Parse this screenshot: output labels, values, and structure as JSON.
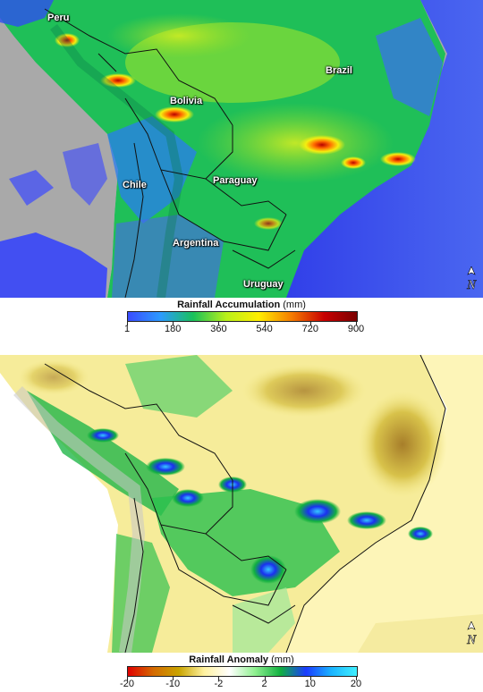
{
  "top_map": {
    "labels": {
      "peru": "Peru",
      "brazil": "Brazil",
      "bolivia": "Bolivia",
      "chile": "Chile",
      "paraguay": "Paraguay",
      "argentina": "Argentina",
      "uruguay": "Uruguay"
    },
    "north_arrow": "N",
    "legend": {
      "title": "Rainfall Accumulation",
      "unit": "(mm)",
      "ticks": [
        "1",
        "180",
        "360",
        "540",
        "720",
        "900"
      ],
      "colors": [
        "#3a4cff",
        "#2c9bff",
        "#19c15a",
        "#b8f01a",
        "#ffee00",
        "#f57c00",
        "#c80000",
        "#7a0000"
      ]
    }
  },
  "bottom_map": {
    "north_arrow": "N",
    "legend": {
      "title": "Rainfall Anomaly",
      "unit": "(mm)",
      "ticks": [
        "-20",
        "-10",
        "-2",
        "2",
        "10",
        "20"
      ],
      "colors": [
        "#e00000",
        "#d46a00",
        "#c9a400",
        "#fff2a0",
        "#ffffff",
        "#8ff08f",
        "#10b040",
        "#1a3bff",
        "#1ab4ff",
        "#40f0ff"
      ]
    }
  }
}
